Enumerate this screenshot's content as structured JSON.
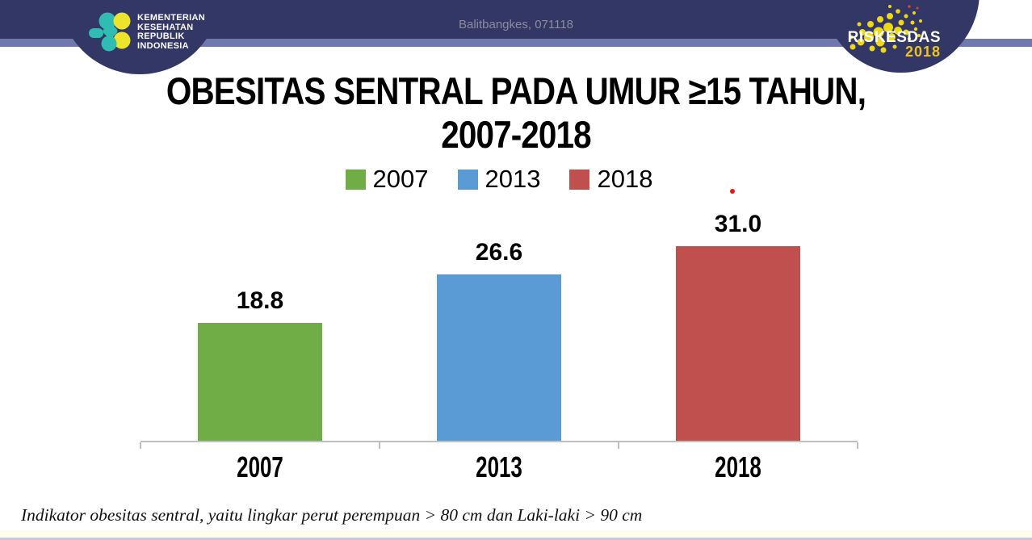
{
  "header": {
    "balitbangkes_label": "Balitbangkes, 071118",
    "kemenkes": {
      "lines": [
        "KEMENTERIAN",
        "KESEHATAN",
        "REPUBLIK",
        "INDONESIA"
      ]
    },
    "riskesdas": {
      "title": "RISKESDAS",
      "year": "2018"
    }
  },
  "title": {
    "line1": "OBESITAS SENTRAL PADA UMUR ≥15 TAHUN,",
    "line2": "2007-2018"
  },
  "chart_data": {
    "type": "bar",
    "categories": [
      "2007",
      "2013",
      "2018"
    ],
    "values": [
      18.8,
      26.6,
      31.0
    ],
    "value_labels": [
      "18.8",
      "26.6",
      "31.0"
    ],
    "colors": [
      "#70AD47",
      "#5B9BD5",
      "#C0504D"
    ],
    "legend_labels": [
      "2007",
      "2013",
      "2018"
    ],
    "legend_position": "top-center",
    "ylim": [
      0,
      35
    ],
    "grid": false,
    "xlabel": "",
    "ylabel": ""
  },
  "footnote": "Indikator obesitas sentral, yaitu lingkar perut perempuan > 80 cm dan Laki-laki > 90 cm",
  "colors": {
    "header_navy": "#333765",
    "header_stripe": "#6F79AE",
    "balitbangkes_text": "#8B8D9D",
    "kemenkes_teal": "#2FBCB2",
    "kemenkes_yellow": "#EDE32C",
    "riskesdas_dot_yellow": "#EFD816",
    "riskesdas_dot_red": "#D8422F",
    "riskesdas_year_yellow": "#EFC51C",
    "axis_gray": "#BFBFBF",
    "red_dot": "#DE1D12"
  }
}
